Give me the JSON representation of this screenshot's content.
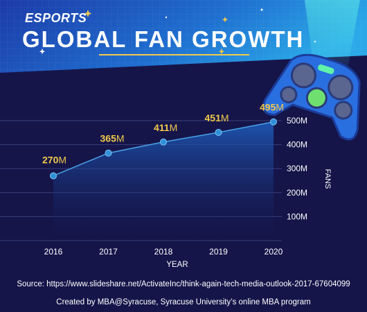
{
  "header": {
    "eyebrow": "ESPORTS",
    "title": "GLOBAL FAN GROWTH"
  },
  "chart_data": {
    "type": "area",
    "x": [
      "2016",
      "2017",
      "2018",
      "2019",
      "2020"
    ],
    "values": [
      270,
      365,
      411,
      451,
      495
    ],
    "value_labels": [
      {
        "num": "270",
        "unit": "M"
      },
      {
        "num": "365",
        "unit": "M"
      },
      {
        "num": "411",
        "unit": "M"
      },
      {
        "num": "451",
        "unit": "M"
      },
      {
        "num": "495",
        "unit": "M"
      }
    ],
    "yticks": [
      100,
      200,
      300,
      400,
      500
    ],
    "ytick_labels": [
      "100M",
      "200M",
      "300M",
      "400M",
      "500M"
    ],
    "ylim": [
      0,
      500
    ],
    "xlabel": "YEAR",
    "ylabel": "FANS",
    "y_axis_side": "right",
    "grid": true,
    "colors": {
      "line": "#4aa3e8",
      "point": "#2f8fd8",
      "value_label": "#f2c94c",
      "grid": "#3a3f7a"
    }
  },
  "footer": {
    "source": "Source: https://www.slideshare.net/ActivateInc/think-again-tech-media-outlook-2017-67604099",
    "credit": "Created by MBA@Syracuse, Syracuse University’s online MBA program"
  },
  "theme": {
    "background": "#15154a",
    "banner_start": "#1a3fb8",
    "banner_end": "#2a8fe0",
    "accent": "#f2c94c"
  },
  "decoration": {
    "icon": "gamepad-icon"
  }
}
